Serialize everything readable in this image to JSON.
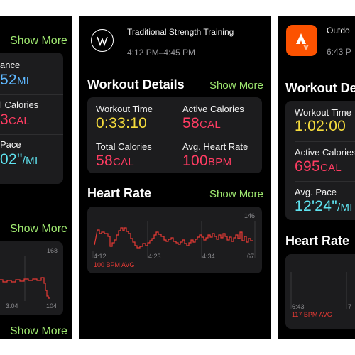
{
  "left": {
    "show_more_1": "Show More",
    "stats": [
      {
        "label": "ance",
        "value": "52",
        "unit": "MI"
      },
      {
        "label": "l Calories",
        "value": "3",
        "unit": "CAL"
      },
      {
        "label": "Pace",
        "value": "02\"",
        "unit": "/MI"
      }
    ],
    "show_more_2": "Show More",
    "chart_max": "168",
    "chart_min": "104",
    "x_tick": "3:04",
    "show_more_3": "Show More"
  },
  "center": {
    "title": "Traditional Strength Training",
    "time": "4:12 PM–4:45 PM",
    "details_heading": "Workout Details",
    "details_show_more": "Show More",
    "stats": [
      {
        "label": "Workout Time",
        "value": "0:33:10",
        "unit": ""
      },
      {
        "label": "Active Calories",
        "value": "58",
        "unit": "CAL"
      },
      {
        "label": "Total Calories",
        "value": "58",
        "unit": "CAL"
      },
      {
        "label": "Avg. Heart Rate",
        "value": "100",
        "unit": "BPM"
      }
    ],
    "heart_heading": "Heart Rate",
    "heart_show_more": "Show More",
    "chart_max": "146",
    "chart_min": "67",
    "x_ticks": [
      "4:12",
      "4:23",
      "4:34"
    ],
    "avg_text": "100 BPM AVG"
  },
  "right": {
    "title": "Outdo",
    "time": "6:43 P",
    "details_heading": "Workout De",
    "stats": [
      {
        "label": "Workout Time",
        "value": "1:02:00",
        "unit": ""
      },
      {
        "label": "Active Calories",
        "value": "695",
        "unit": "CAL"
      },
      {
        "label": "Avg. Pace",
        "value": "12'24\"",
        "unit": "/MI"
      }
    ],
    "heart_heading": "Heart Rate",
    "x_ticks": [
      "6:43",
      "7"
    ],
    "avg_text": "117 BPM AVG"
  },
  "colors": {
    "accent_green": "#9fe870",
    "yellow": "#f6dc3c",
    "pink": "#ff3c62",
    "cyan": "#5fe3f0",
    "chart_red": "#e83a35",
    "strava_orange": "#fc5200"
  },
  "icons": {
    "center_app": "strength-training-w-icon",
    "right_app": "strava-icon"
  }
}
